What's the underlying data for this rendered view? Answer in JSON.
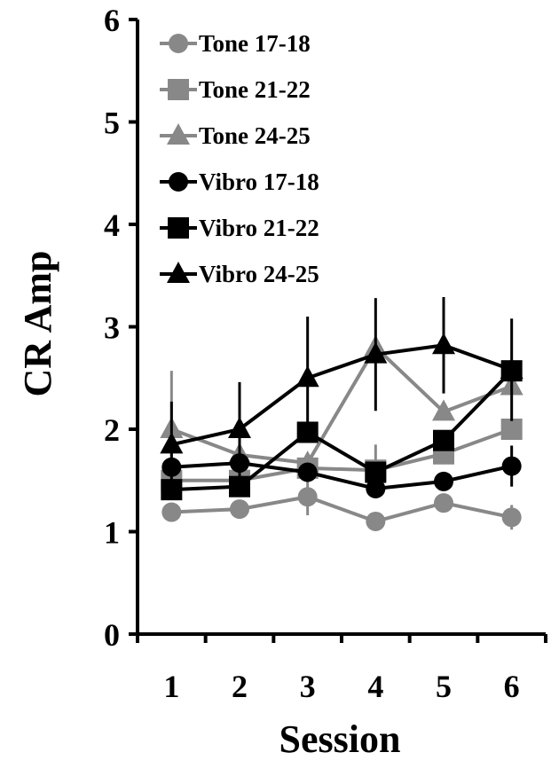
{
  "chart_data": {
    "type": "line",
    "title": "",
    "xlabel": "Session",
    "ylabel": "CR Amp",
    "x": [
      1,
      2,
      3,
      4,
      5,
      6
    ],
    "xticks": [
      "1",
      "2",
      "3",
      "4",
      "5",
      "6"
    ],
    "ylim": [
      0,
      6
    ],
    "yticks": [
      "0",
      "1",
      "2",
      "3",
      "4",
      "5",
      "6"
    ],
    "grid": false,
    "legend_position": "top-left",
    "error_bars": true,
    "series": [
      {
        "name": "Tone 17-18",
        "color": "#888888",
        "marker": "circle",
        "values": [
          1.19,
          1.22,
          1.34,
          1.1,
          1.28,
          1.14
        ],
        "err": [
          0.0,
          0.0,
          0.18,
          0.0,
          0.0,
          0.12
        ]
      },
      {
        "name": "Tone 21-22",
        "color": "#888888",
        "marker": "square",
        "values": [
          1.5,
          1.5,
          1.62,
          1.6,
          1.76,
          2.0
        ],
        "err": [
          0.0,
          0.0,
          0.0,
          0.25,
          0.0,
          0.0
        ]
      },
      {
        "name": "Tone 24-25",
        "color": "#888888",
        "marker": "triangle",
        "values": [
          2.0,
          1.75,
          1.67,
          2.8,
          2.17,
          2.42
        ],
        "err": [
          0.57,
          0.0,
          0.0,
          0.0,
          0.0,
          0.0
        ]
      },
      {
        "name": "Vibro 17-18",
        "color": "#000000",
        "marker": "circle",
        "values": [
          1.63,
          1.67,
          1.58,
          1.42,
          1.49,
          1.64
        ],
        "err": [
          0.0,
          0.0,
          0.0,
          0.0,
          0.0,
          0.2
        ]
      },
      {
        "name": "Vibro 21-22",
        "color": "#000000",
        "marker": "square",
        "values": [
          1.41,
          1.44,
          1.97,
          1.58,
          1.89,
          2.57
        ],
        "err": [
          0.0,
          0.0,
          0.0,
          0.0,
          0.0,
          0.0
        ]
      },
      {
        "name": "Vibro 24-25",
        "color": "#000000",
        "marker": "triangle",
        "values": [
          1.85,
          2.0,
          2.5,
          2.73,
          2.82,
          2.58
        ],
        "err": [
          0.42,
          0.46,
          0.6,
          0.55,
          0.47,
          0.5
        ]
      }
    ]
  }
}
